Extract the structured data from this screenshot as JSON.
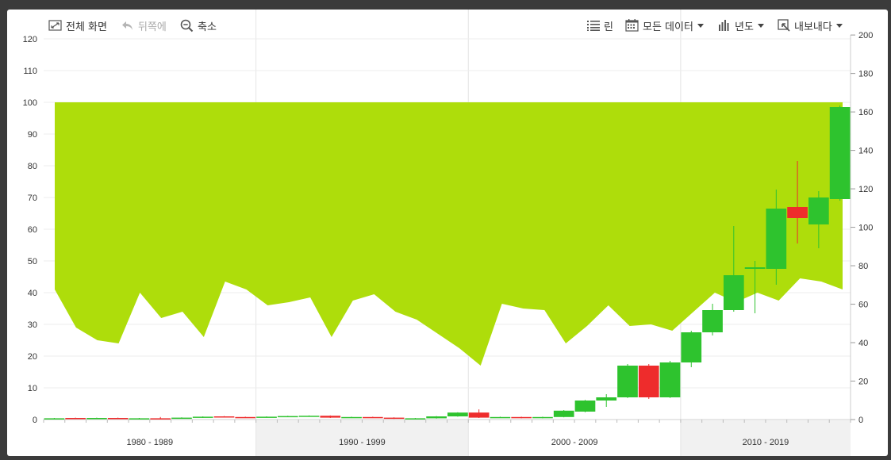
{
  "toolbar": {
    "fullscreen_label": "전체 화면",
    "back_label": "뒤쪽에",
    "zoomout_label": "축소",
    "indicator_label": "린",
    "alldata_label": "모든 데이터",
    "period_label": "년도",
    "export_label": "내보내다"
  },
  "chart_data": {
    "type": "candlestick+area",
    "start_year": 1980,
    "left_axis": {
      "ticks": [
        0,
        10,
        20,
        30,
        40,
        50,
        60,
        70,
        80,
        90,
        100,
        110,
        120
      ]
    },
    "right_axis": {
      "ticks": [
        0,
        20,
        40,
        60,
        80,
        100,
        120,
        140,
        160,
        180,
        200
      ]
    },
    "decade_labels": [
      "1980 - 1989",
      "1990 - 1999",
      "2000 - 2009",
      "2010 - 2019"
    ],
    "area": {
      "top": 100,
      "lower": [
        41,
        29,
        25,
        24,
        40,
        32,
        34,
        26,
        43.5,
        41,
        36,
        37,
        38.5,
        26,
        37.5,
        39.5,
        34,
        31.5,
        27,
        22.5,
        17,
        36.5,
        35,
        34.5,
        24,
        29.5,
        36,
        29.5,
        30,
        28,
        34,
        40,
        37,
        40,
        37.5,
        44.5,
        43.5,
        41
      ]
    },
    "candles": [
      {
        "o": 0.3,
        "c": 0.4,
        "h": 0.5,
        "l": 0.2
      },
      {
        "o": 0.5,
        "c": 0.4,
        "h": 0.6,
        "l": 0.3
      },
      {
        "o": 0.4,
        "c": 0.5,
        "h": 0.6,
        "l": 0.3
      },
      {
        "o": 0.5,
        "c": 0.3,
        "h": 0.6,
        "l": 0.2
      },
      {
        "o": 0.3,
        "c": 0.4,
        "h": 0.5,
        "l": 0.2
      },
      {
        "o": 0.4,
        "c": 0.3,
        "h": 0.8,
        "l": 0.2
      },
      {
        "o": 0.4,
        "c": 0.6,
        "h": 0.7,
        "l": 0.3
      },
      {
        "o": 0.6,
        "c": 0.9,
        "h": 1.0,
        "l": 0.5
      },
      {
        "o": 1.0,
        "c": 0.8,
        "h": 1.1,
        "l": 0.7
      },
      {
        "o": 0.8,
        "c": 0.7,
        "h": 0.9,
        "l": 0.6
      },
      {
        "o": 0.7,
        "c": 0.9,
        "h": 1.0,
        "l": 0.6
      },
      {
        "o": 0.9,
        "c": 1.1,
        "h": 1.2,
        "l": 0.8
      },
      {
        "o": 1.1,
        "c": 1.2,
        "h": 1.3,
        "l": 1.0
      },
      {
        "o": 1.2,
        "c": 0.6,
        "h": 1.3,
        "l": 0.5
      },
      {
        "o": 0.6,
        "c": 0.8,
        "h": 0.9,
        "l": 0.5
      },
      {
        "o": 0.8,
        "c": 0.6,
        "h": 0.9,
        "l": 0.5
      },
      {
        "o": 0.6,
        "c": 0.3,
        "h": 0.7,
        "l": 0.2
      },
      {
        "o": 0.3,
        "c": 0.4,
        "h": 0.5,
        "l": 0.2
      },
      {
        "o": 0.4,
        "c": 1.0,
        "h": 1.1,
        "l": 0.3
      },
      {
        "o": 1.0,
        "c": 2.2,
        "h": 2.3,
        "l": 0.9
      },
      {
        "o": 2.2,
        "c": 0.6,
        "h": 3.2,
        "l": 0.5
      },
      {
        "o": 0.6,
        "c": 0.8,
        "h": 0.9,
        "l": 0.5
      },
      {
        "o": 0.8,
        "c": 0.5,
        "h": 0.9,
        "l": 0.4
      },
      {
        "o": 0.5,
        "c": 0.8,
        "h": 0.9,
        "l": 0.4
      },
      {
        "o": 0.8,
        "c": 2.8,
        "h": 3.0,
        "l": 0.7
      },
      {
        "o": 2.5,
        "c": 6.0,
        "h": 6.2,
        "l": 2.3
      },
      {
        "o": 6.0,
        "c": 7.0,
        "h": 8.0,
        "l": 4.0
      },
      {
        "o": 7.0,
        "c": 17.0,
        "h": 17.5,
        "l": 6.8
      },
      {
        "o": 17.0,
        "c": 7.0,
        "h": 17.5,
        "l": 6.5
      },
      {
        "o": 7.0,
        "c": 18.0,
        "h": 18.5,
        "l": 6.8
      },
      {
        "o": 18.0,
        "c": 27.5,
        "h": 28.0,
        "l": 16.5
      },
      {
        "o": 27.5,
        "c": 34.5,
        "h": 36.5,
        "l": 26.5
      },
      {
        "o": 34.5,
        "c": 45.5,
        "h": 61.0,
        "l": 34.0
      },
      {
        "o": 47.5,
        "c": 48.0,
        "h": 50.0,
        "l": 33.5
      },
      {
        "o": 47.5,
        "c": 66.5,
        "h": 72.5,
        "l": 42.5
      },
      {
        "o": 67.0,
        "c": 63.5,
        "h": 81.5,
        "l": 55.5
      },
      {
        "o": 61.5,
        "c": 70.0,
        "h": 72.0,
        "l": 54.0
      },
      {
        "o": 69.5,
        "c": 98.5,
        "h": 99.0,
        "l": 69.0
      }
    ]
  }
}
